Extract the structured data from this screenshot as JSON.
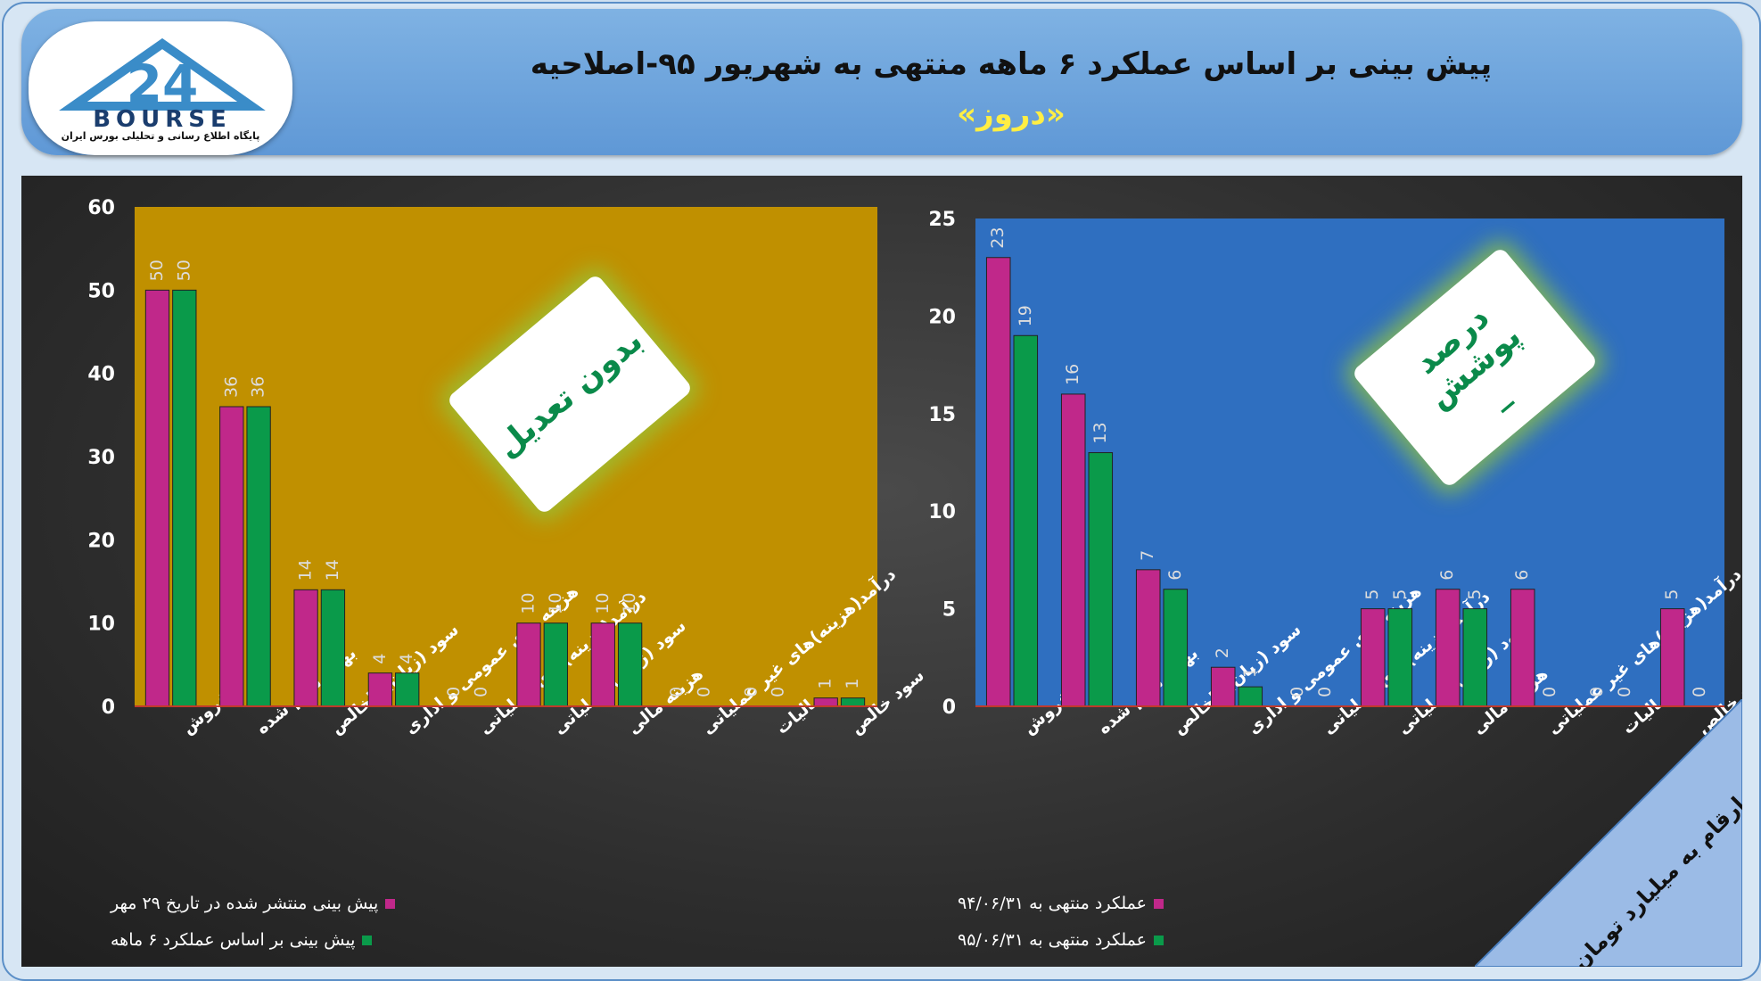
{
  "header": {
    "title": "پیش بینی بر اساس عملکرد ۶ ماهه منتهی به شهریور ۹۵-اصلاحیه",
    "subtitle": "«دروز»",
    "logo_text": "24 BOURSE",
    "logo_tagline": "پایگاه اطلاع رسانی و تحلیلی بورس ایران"
  },
  "colors": {
    "magenta": "#c0288a",
    "green": "#0a9a4a",
    "gold_bg": "#c09000",
    "blue_bg": "#2f6fc0"
  },
  "categories": [
    "فروش",
    "بهای تمام شده",
    "سود (زیان) ناخالص",
    "هزینه های عمومی و اداری",
    "درآمد(هزینه)های عملیاتی",
    "سود (زیان) عملیاتی",
    "هزینه مالی",
    "درآمد(هزینه)های غیر عملیاتی",
    "مالیات",
    "سود خالص"
  ],
  "left": {
    "badge_text": "بدون تعدیل",
    "legend": [
      "پیش بینی منتشر شده در تاریخ ۲۹ مهر",
      "پیش بینی بر اساس عملکرد ۶ ماهه"
    ]
  },
  "right": {
    "badge_line1": "درصد پوشش",
    "badge_line2": "_",
    "legend": [
      "عملکرد منتهی به ۹۴/۰۶/۳۱",
      "عملکرد منتهی به ۹۵/۰۶/۳۱"
    ]
  },
  "corner_note": "ارقام به میلیارد تومان",
  "chart_data": [
    {
      "type": "bar",
      "categories": [
        "فروش",
        "بهای تمام شده",
        "سود (زیان) ناخالص",
        "هزینه های عمومی و اداری",
        "درآمد(هزینه)های عملیاتی",
        "سود (زیان) عملیاتی",
        "هزینه مالی",
        "درآمد(هزینه)های غیر عملیاتی",
        "مالیات",
        "سود خالص"
      ],
      "series": [
        {
          "name": "پیش بینی منتشر شده در تاریخ ۲۹ مهر",
          "values": [
            50,
            36,
            14,
            4,
            0,
            10,
            10,
            0,
            0,
            1
          ]
        },
        {
          "name": "پیش بینی بر اساس عملکرد ۶ ماهه",
          "values": [
            50,
            36,
            14,
            4,
            0,
            10,
            10,
            0,
            0,
            1
          ]
        }
      ],
      "ylim": [
        0,
        60
      ],
      "yticks": [
        0,
        10,
        20,
        30,
        40,
        50,
        60
      ],
      "grid": false,
      "legend": "bottom-left"
    },
    {
      "type": "bar",
      "categories": [
        "فروش",
        "بهای تمام شده",
        "سود (زیان) ناخالص",
        "هزینه های عمومی و اداری",
        "درآمد(هزینه)های عملیاتی",
        "سود (زیان) عملیاتی",
        "هزینه مالی",
        "درآمد(هزینه)های غیر عملیاتی",
        "مالیات",
        "سود خالص"
      ],
      "series": [
        {
          "name": "عملکرد منتهی به ۹۴/۰۶/۳۱",
          "values": [
            23,
            16,
            7,
            2,
            0,
            5,
            6,
            6,
            0,
            5
          ]
        },
        {
          "name": "عملکرد منتهی به ۹۵/۰۶/۳۱",
          "values": [
            19,
            13,
            6,
            1,
            0,
            5,
            5,
            0,
            0,
            0
          ]
        }
      ],
      "ylim": [
        0,
        25
      ],
      "yticks": [
        0,
        5,
        10,
        15,
        20,
        25
      ],
      "grid": false,
      "legend": "bottom-left"
    }
  ]
}
